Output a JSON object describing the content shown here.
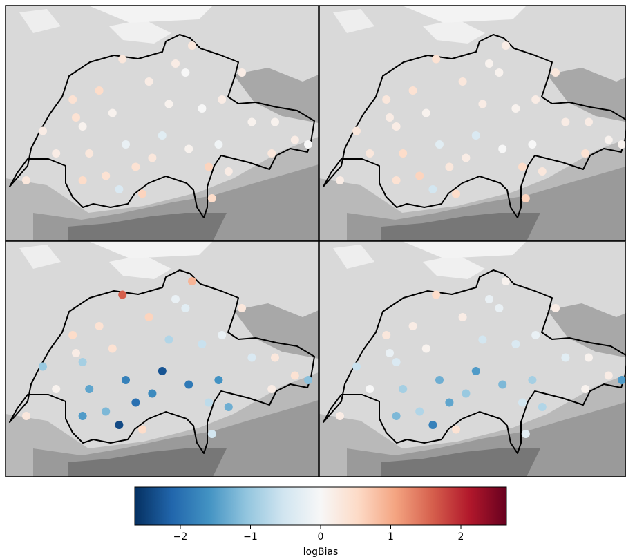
{
  "chart_data": {
    "type": "map-scatter",
    "stations": {
      "lon": [
        6.15,
        6.6,
        6.9,
        7.0,
        7.45,
        7.6,
        7.35,
        7.65,
        7.9,
        8.0,
        8.3,
        8.55,
        8.65,
        8.95,
        9.05,
        9.4,
        9.55,
        9.85,
        10.2,
        8.8,
        8.2,
        6.85,
        7.1,
        8.6,
        9.1,
        8.9,
        7.8,
        6.4,
        7.25,
        9.9,
        8.4,
        7.55,
        8.05,
        9.2,
        10.4,
        7.0
      ],
      "lat": [
        46.2,
        46.5,
        46.9,
        46.2,
        46.95,
        47.55,
        46.25,
        46.6,
        46.05,
        47.3,
        47.05,
        47.4,
        47.7,
        46.0,
        46.6,
        47.4,
        46.85,
        46.5,
        46.65,
        47.0,
        46.7,
        47.1,
        46.5,
        46.55,
        47.1,
        46.35,
        46.35,
        46.75,
        47.2,
        46.85,
        47.5,
        46.1,
        46.45,
        46.3,
        46.6,
        46.8
      ]
    },
    "panels": [
      {
        "values": [
          0.3,
          0.2,
          0.4,
          0.5,
          0.1,
          0.3,
          0.4,
          -0.2,
          0.6,
          0.2,
          0.1,
          0.0,
          0.3,
          0.5,
          -0.1,
          0.2,
          0.1,
          0.3,
          0.2,
          0.0,
          -0.3,
          0.4,
          0.3,
          0.1,
          0.2,
          0.6,
          0.4,
          0.2,
          0.5,
          0.1,
          0.2,
          -0.4,
          0.3,
          0.2,
          0.0,
          0.1
        ]
      },
      {
        "values": [
          0.2,
          0.3,
          0.2,
          0.4,
          0.1,
          0.4,
          0.6,
          -0.3,
          0.5,
          0.3,
          0.2,
          0.1,
          0.2,
          0.6,
          0.0,
          0.3,
          0.2,
          0.4,
          0.1,
          0.1,
          -0.4,
          0.3,
          0.5,
          0.0,
          0.2,
          0.5,
          0.3,
          0.3,
          0.4,
          0.2,
          0.1,
          -0.5,
          0.2,
          0.3,
          0.1,
          0.2
        ]
      },
      {
        "values": [
          0.3,
          0.1,
          0.2,
          -1.5,
          0.4,
          1.6,
          -1.2,
          -1.8,
          0.5,
          0.6,
          -0.8,
          -0.3,
          0.9,
          -0.5,
          -1.6,
          0.3,
          -0.4,
          0.2,
          0.4,
          -0.6,
          -2.3,
          0.5,
          -1.4,
          -1.9,
          -0.2,
          -0.7,
          -2.0,
          -1.0,
          0.4,
          0.3,
          -0.2,
          -2.4,
          -1.7,
          -1.3,
          -1.1,
          -0.9
        ]
      },
      {
        "values": [
          0.2,
          0.0,
          -0.2,
          -1.2,
          0.1,
          0.5,
          -0.8,
          -1.3,
          0.4,
          0.2,
          -0.5,
          -0.2,
          0.1,
          -0.3,
          -0.9,
          0.2,
          -0.3,
          0.1,
          0.2,
          -0.4,
          -1.5,
          0.3,
          -0.9,
          -1.2,
          -0.2,
          -0.5,
          -1.4,
          -0.6,
          0.2,
          0.1,
          -0.2,
          -1.8,
          -1.0,
          -0.8,
          -1.5,
          -0.4
        ]
      }
    ],
    "colorbar": {
      "label": "logBias",
      "clim": [
        -2.65,
        2.65
      ],
      "ticks": [
        {
          "value": -2,
          "label": "−2"
        },
        {
          "value": -1,
          "label": "−1"
        },
        0,
        1,
        2
      ],
      "colors": [
        "#053061",
        "#2166ac",
        "#4393c3",
        "#92c5de",
        "#d1e5f0",
        "#f7f7f7",
        "#fddbc7",
        "#f4a582",
        "#d6604d",
        "#b2182b",
        "#67001f"
      ]
    }
  }
}
